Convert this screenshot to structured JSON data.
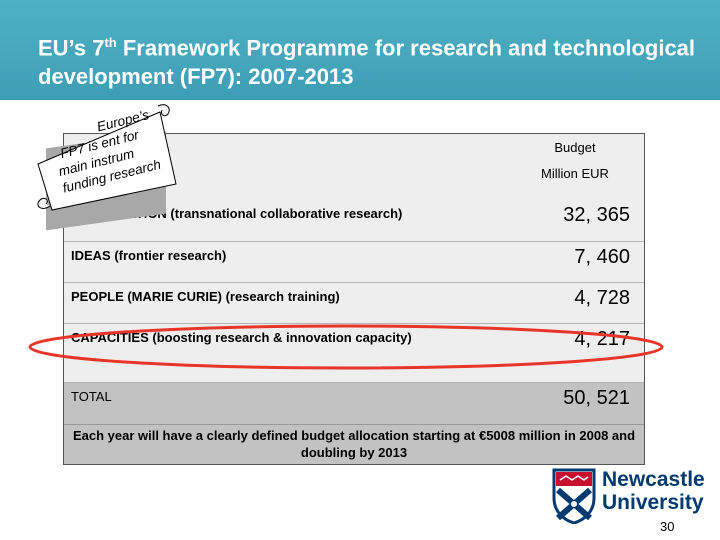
{
  "slide": {
    "title_pre": "EU’s 7",
    "title_sup": "th",
    "title_post": " Framework Programme for research and technological development (FP7): 2007-2013"
  },
  "scroll_note": {
    "lines": [
      "Europe’s",
      "FP7 is ent for",
      "main instrum",
      "funding research"
    ]
  },
  "table": {
    "header_line1": "Budget",
    "header_line2": "Million EUR",
    "rows": [
      {
        "label": "COOPERATION (transnational collaborative research)",
        "value": "32, 365"
      },
      {
        "label": "IDEAS (frontier research)",
        "value": "7, 460"
      },
      {
        "label": "PEOPLE (MARIE CURIE) (research training)",
        "value": "4, 728"
      },
      {
        "label": "CAPACITIES (boosting research & innovation capacity)",
        "value": "4, 217"
      },
      {
        "label": "TOTAL",
        "value": "50, 521"
      }
    ],
    "note": "Each year will have a clearly defined budget allocation starting at €5008 million in 2008 and doubling by 2013"
  },
  "highlight": {
    "color": "#e8352a"
  },
  "logo": {
    "line1": "Newcastle",
    "line2": "University"
  },
  "page_number": "30"
}
